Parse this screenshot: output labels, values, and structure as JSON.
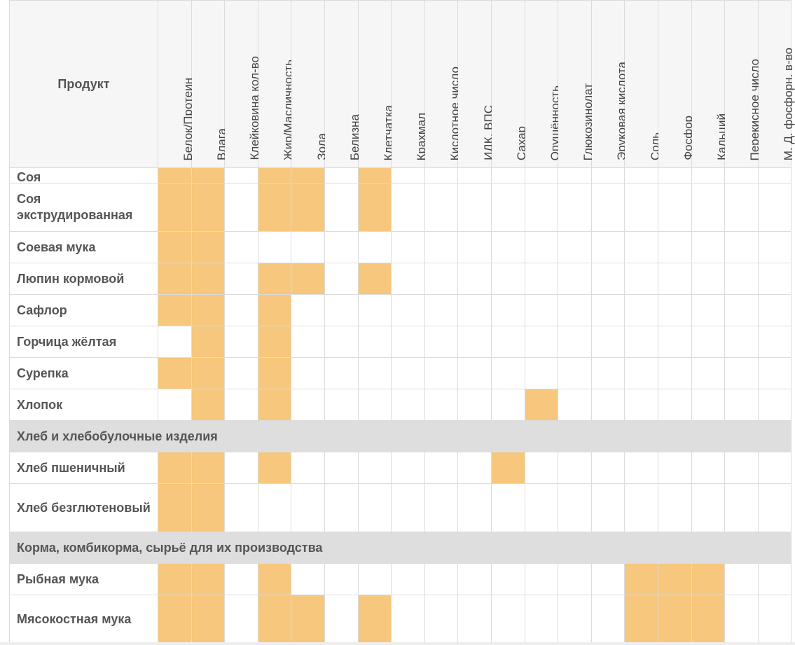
{
  "table": {
    "product_header": "Продукт",
    "columns": [
      "Белок/Протеин",
      "Влага",
      "Клейковина кол-во",
      "Жир/Масличность",
      "Зола",
      "Белизна",
      "Клетчатка",
      "Крахмал",
      "Кислотное число",
      "ИДК, ВПС",
      "Сахар",
      "Опушённость",
      "Глюкозинолат",
      "Эруковая кислота",
      "Соль",
      "Фосфор",
      "Кальций",
      "Перекисное число",
      "М. Д. фосфорн. в-во"
    ],
    "rows": [
      {
        "type": "item",
        "name": "Соя",
        "h": 22,
        "on": [
          0,
          1,
          3,
          4,
          6
        ]
      },
      {
        "type": "item",
        "name": "Соя экструдированная",
        "h": 69,
        "on": [
          0,
          1,
          3,
          4,
          6
        ]
      },
      {
        "type": "item",
        "name": "Соевая мука",
        "h": 45,
        "on": [
          0,
          1
        ]
      },
      {
        "type": "item",
        "name": "Люпин кормовой",
        "h": 45,
        "on": [
          0,
          1,
          3,
          4,
          6
        ]
      },
      {
        "type": "item",
        "name": "Сафлор",
        "h": 45,
        "on": [
          0,
          1,
          3
        ]
      },
      {
        "type": "item",
        "name": "Горчица жёлтая",
        "h": 45,
        "on": [
          1,
          3
        ]
      },
      {
        "type": "item",
        "name": "Сурепка",
        "h": 45,
        "on": [
          0,
          1,
          3
        ]
      },
      {
        "type": "item",
        "name": "Хлопок",
        "h": 45,
        "on": [
          1,
          3,
          11
        ]
      },
      {
        "type": "category",
        "name": "Хлеб и хлебобулочные изделия",
        "h": 45
      },
      {
        "type": "item",
        "name": "Хлеб пшеничный",
        "h": 45,
        "on": [
          0,
          1,
          3,
          10
        ]
      },
      {
        "type": "item",
        "name": "Хлеб безглютеновый",
        "h": 69,
        "on": [
          0,
          1
        ]
      },
      {
        "type": "category",
        "name": "Корма, комбикорма, сырьё для их производства",
        "h": 45
      },
      {
        "type": "item",
        "name": "Рыбная мука",
        "h": 45,
        "on": [
          0,
          1,
          3,
          14,
          15,
          16
        ]
      },
      {
        "type": "item",
        "name": "Мясокостная мука",
        "h": 69,
        "on": [
          0,
          1,
          3,
          4,
          6,
          14,
          15,
          16
        ]
      }
    ]
  },
  "colors": {
    "highlight": "#f6c77c",
    "category_bg": "#dedede",
    "header_bg": "#f6f6f6",
    "grid": "#dcdcdc"
  }
}
